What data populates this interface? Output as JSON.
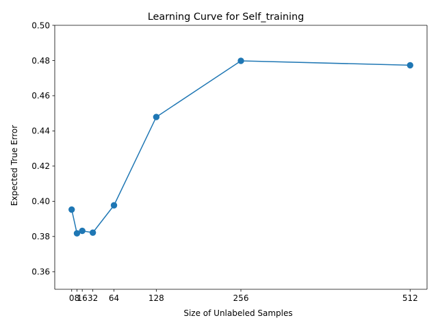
{
  "chart_data": {
    "type": "line",
    "title": "Learning Curve for Self_training",
    "xlabel": "Size of Unlabeled Samples",
    "ylabel": "Expected True Error",
    "x": [
      0,
      8,
      16,
      32,
      64,
      128,
      256,
      512
    ],
    "series": [
      {
        "values": [
          0.3953,
          0.3818,
          0.3832,
          0.3822,
          0.3977,
          0.4479,
          0.4798,
          0.4773
        ],
        "color": "#1f77b4"
      }
    ],
    "xticks": [
      0,
      8,
      16,
      32,
      64,
      128,
      256,
      512
    ],
    "xtick_labels": [
      "0",
      "8",
      "16",
      "32",
      "64",
      "128",
      "256",
      "512"
    ],
    "yticks": [
      0.36,
      0.38,
      0.4,
      0.42,
      0.44,
      0.46,
      0.48,
      0.5
    ],
    "ytick_labels": [
      "0.36",
      "0.38",
      "0.40",
      "0.42",
      "0.44",
      "0.46",
      "0.48",
      "0.50"
    ],
    "xlim": [
      -25.6,
      537.6
    ],
    "ylim": [
      0.35,
      0.5
    ],
    "grid": false,
    "legend": "none",
    "marker": "circle"
  }
}
